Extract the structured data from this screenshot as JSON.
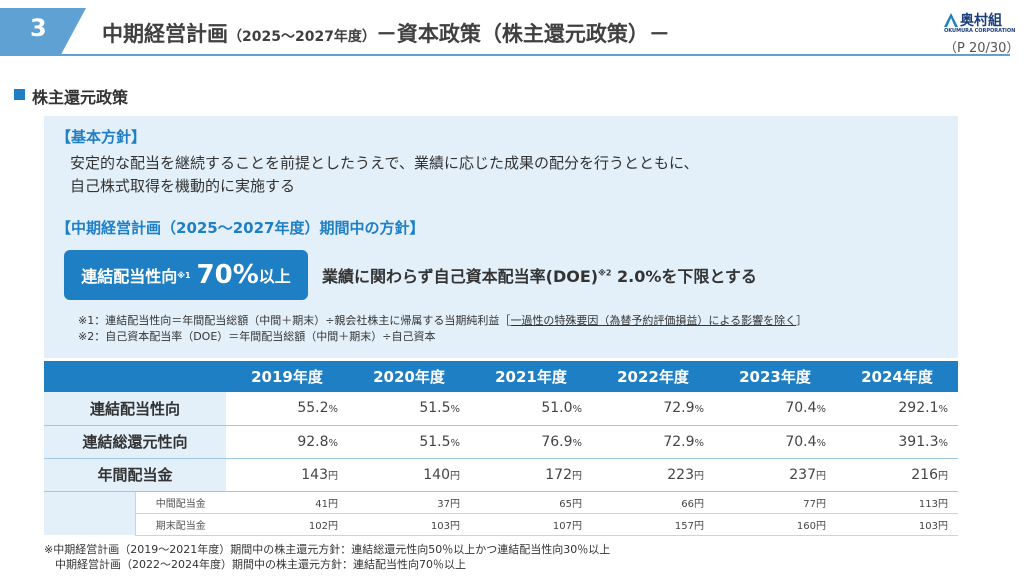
{
  "header": {
    "section_number": "3",
    "title_main": "中期経営計画",
    "title_period": "（2025～2027年度）",
    "title_rest": "－資本政策（株主還元政策）－",
    "company": "奥村組",
    "company_en": "OKUMURA CORPORATION",
    "page": "（P 20/30）"
  },
  "section": {
    "title": "株主還元政策"
  },
  "policy": {
    "basic_heading": "【基本方針】",
    "basic_line1": "安定的な配当を継続することを前提としたうえで、業績に応じた成果の配分を行うとともに、",
    "basic_line2": "自己株式取得を機動的に実施する",
    "plan_heading": "【中期経営計画（2025～2027年度）期間中の方針】",
    "badge_label": "連結配当性向",
    "badge_mark": "※1",
    "badge_value": "70%",
    "badge_suffix": "以上",
    "doe_text1": "業績に関わらず自己資本配当率(DOE)",
    "doe_mark": "※2",
    "doe_text2": " 2.0%を下限とする",
    "note1_main": "※1：連結配当性向＝年間配当総額（中間＋期末）÷親会社株主に帰属する当期純利益［",
    "note1_ul": "一過性の特殊要因（為替予約評価損益）による影響を除く",
    "note1_end": "］",
    "note2": "※2：自己資本配当率（DOE）＝年間配当総額（中間＋期末）÷自己資本"
  },
  "table": {
    "years": [
      "2019年度",
      "2020年度",
      "2021年度",
      "2022年度",
      "2023年度",
      "2024年度"
    ],
    "rows": [
      {
        "label": "連結配当性向",
        "values": [
          "55.2",
          "51.5",
          "51.0",
          "72.9",
          "70.4",
          "292.1"
        ],
        "unit": "%"
      },
      {
        "label": "連結総還元性向",
        "values": [
          "92.8",
          "51.5",
          "76.9",
          "72.9",
          "70.4",
          "391.3"
        ],
        "unit": "%"
      },
      {
        "label": "年間配当金",
        "values": [
          "143",
          "140",
          "172",
          "223",
          "237",
          "216"
        ],
        "unit": "円"
      }
    ],
    "sub_rows": [
      {
        "label": "中間配当金",
        "values": [
          "41円",
          "37円",
          "65円",
          "66円",
          "77円",
          "113円"
        ]
      },
      {
        "label": "期末配当金",
        "values": [
          "102円",
          "103円",
          "107円",
          "157円",
          "160円",
          "103円"
        ]
      }
    ]
  },
  "footnote": {
    "line1": "※中期経営計画（2019～2021年度）期間中の株主還元方針：連結総還元性向50％以上かつ連結配当性向30％以上",
    "line2": "　中期経営計画（2022～2024年度）期間中の株主還元方針：連結配当性向70％以上"
  },
  "colors": {
    "accent": "#1f7fc5",
    "band": "#5fa1d2",
    "panel": "#e3f0fa"
  }
}
